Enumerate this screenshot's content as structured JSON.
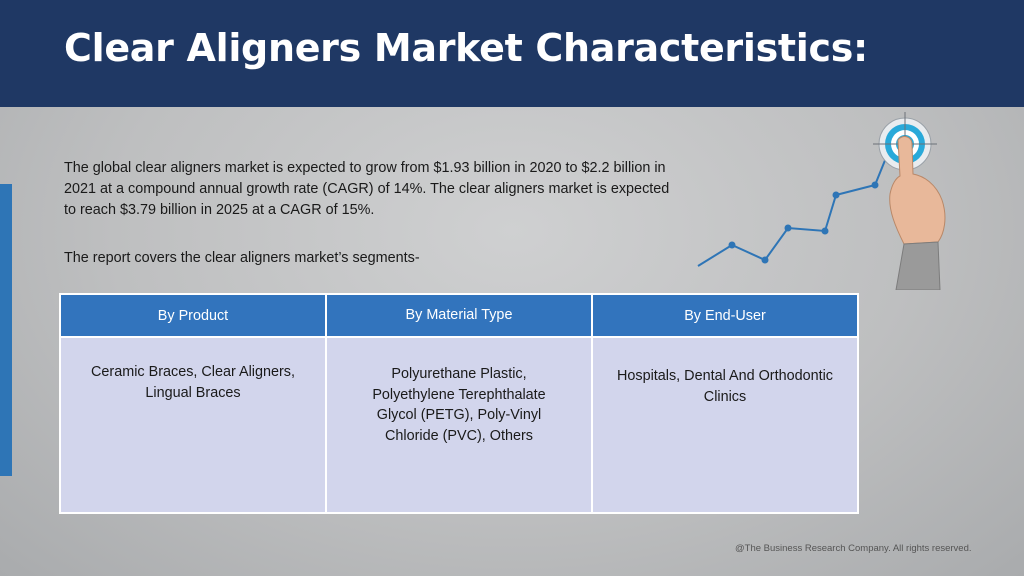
{
  "slide": {
    "title": "Clear Aligners Market Characteristics:",
    "intro_text": "The global clear aligners market is expected to grow from $1.93 billion in 2020 to $2.2 billion in 2021 at a compound annual growth rate (CAGR) of 14%.  The clear aligners market is expected to reach $3.79 billion in 2025 at a CAGR of 15%.",
    "segments_intro": "The report covers the clear aligners market’s segments-",
    "footer": "@The Business Research Company. All rights reserved."
  },
  "segments_table": {
    "headers": [
      "By Product",
      "By Material Type",
      "By End-User"
    ],
    "cells": [
      "Ceramic Braces, Clear Aligners, Lingual Braces",
      "Polyurethane Plastic, Polyethylene Terephthalate Glycol (PETG), Poly-Vinyl Chloride (PVC), Others",
      "Hospitals, Dental And Orthodontic Clinics"
    ]
  },
  "illustration": {
    "icons": [
      "growth-line-chart-icon",
      "target-icon",
      "pointing-hand-icon"
    ],
    "colors": {
      "header": "#1f3864",
      "accent": "#2e75b6",
      "table_header": "#3274bd",
      "table_cell": "#d2d5ec",
      "target_ring": "#29a9d9"
    }
  }
}
